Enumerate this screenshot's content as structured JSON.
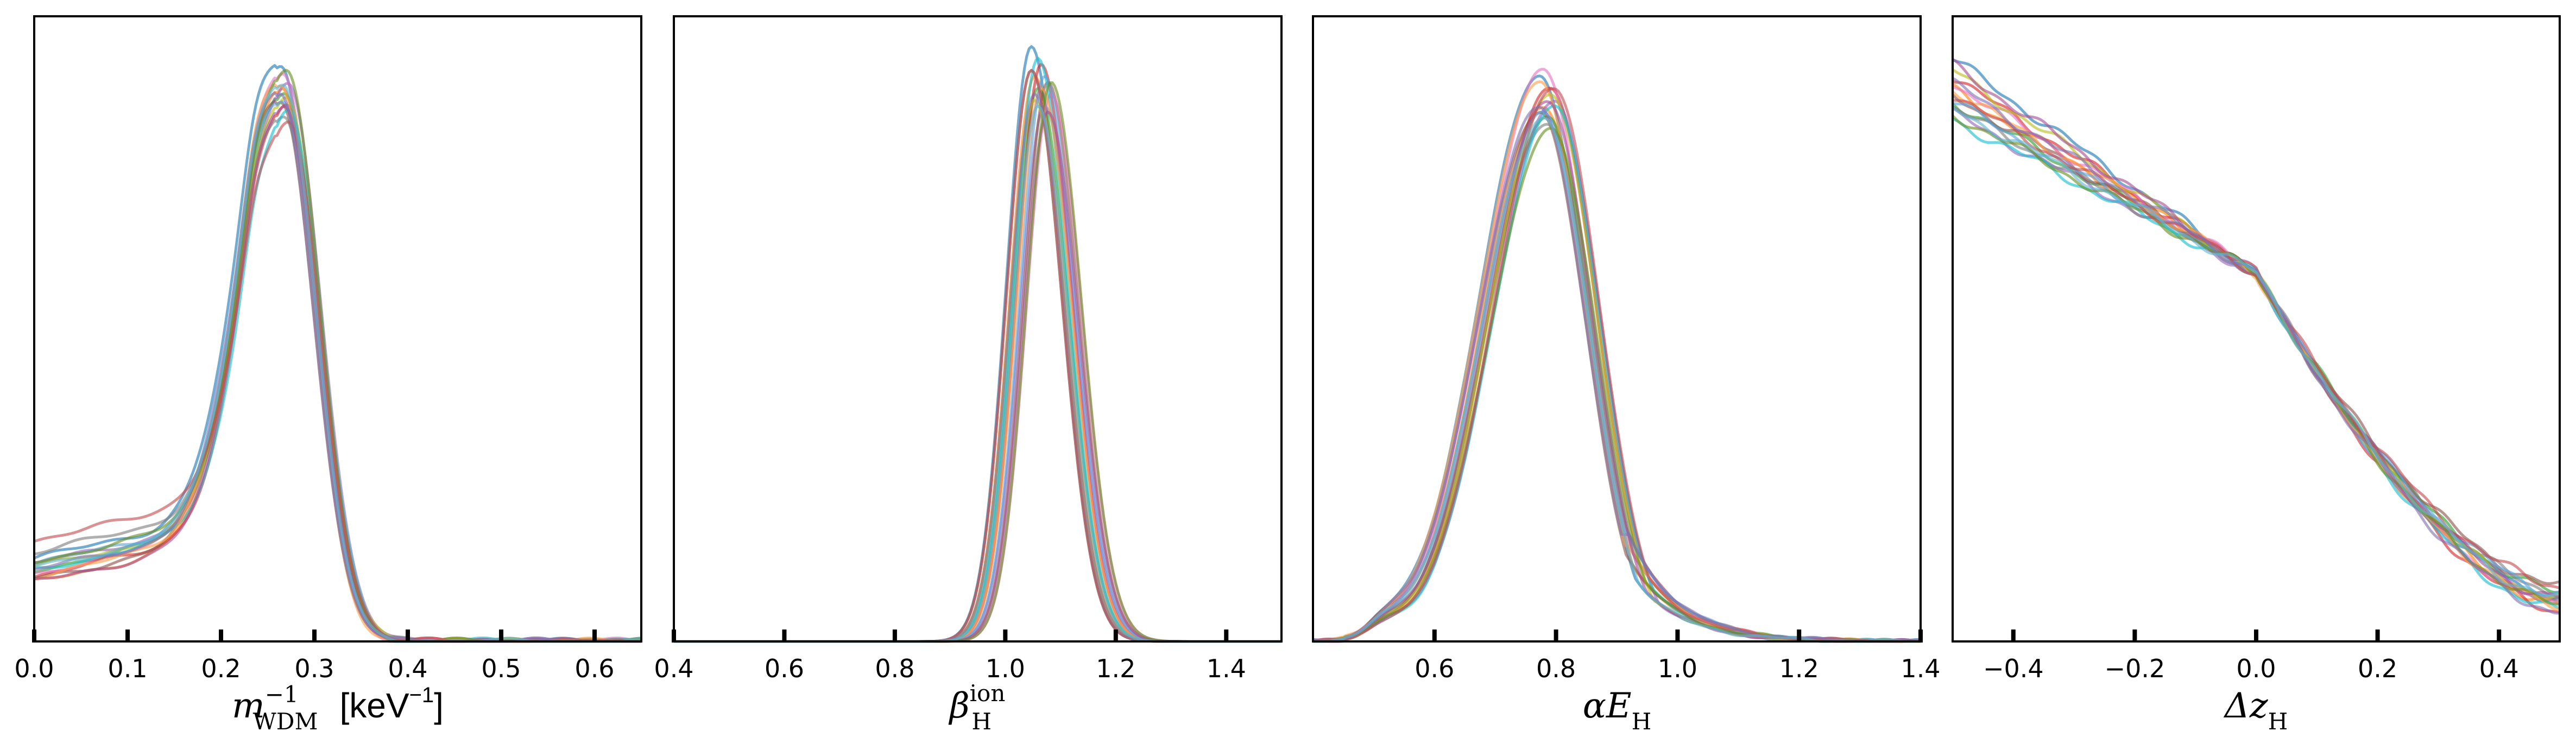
{
  "chart_data": [
    {
      "type": "line",
      "xlim": [
        0.0,
        0.65
      ],
      "xticks": [
        "0.0",
        "0.1",
        "0.2",
        "0.3",
        "0.4",
        "0.5",
        "0.6"
      ],
      "xlabel": {
        "main": "m",
        "sup": "−1",
        "sub": "WDM",
        "unit": "[keV",
        "unit_sup": "−1",
        "unit_end": "]"
      },
      "peak_x": 0.268,
      "series_peaks": [
        0.97,
        0.93,
        0.92,
        0.9,
        0.94,
        0.91,
        0.95,
        0.88,
        0.92,
        0.89,
        0.93,
        0.91,
        0.9,
        0.96,
        0.87,
        0.92,
        0.94
      ],
      "left_floor": [
        0.14,
        0.1,
        0.12,
        0.11,
        0.13,
        0.105,
        0.115,
        0.15,
        0.125,
        0.12,
        0.11,
        0.13,
        0.1,
        0.135,
        0.17,
        0.12,
        0.125
      ]
    },
    {
      "type": "line",
      "xlim": [
        0.4,
        1.5
      ],
      "xticks": [
        "0.4",
        "0.6",
        "0.8",
        "1.0",
        "1.2",
        "1.4"
      ],
      "xlabel": {
        "main": "β",
        "sup": "ion",
        "sub": "H"
      },
      "peak_x": 1.065,
      "series_peaks": [
        1.0,
        0.95,
        0.93,
        0.97,
        0.9,
        0.94,
        0.92,
        0.96,
        0.91,
        0.98,
        0.93,
        0.95,
        0.89,
        0.94,
        0.96,
        0.92,
        0.9
      ]
    },
    {
      "type": "line",
      "xlim": [
        0.4,
        1.4
      ],
      "xticks": [
        "0.6",
        "0.8",
        "1.0",
        "1.2",
        "1.4"
      ],
      "xlabel": {
        "main": "αE",
        "sub": "H"
      },
      "peak_x": 0.785,
      "series_peaks": [
        0.95,
        0.9,
        0.88,
        0.93,
        0.91,
        0.89,
        0.96,
        0.87,
        0.92,
        0.9,
        0.94,
        0.89,
        0.91,
        0.86,
        0.93,
        0.9,
        0.88
      ]
    },
    {
      "type": "line",
      "xlim": [
        -0.5,
        0.5
      ],
      "xticks": [
        "−0.4",
        "−0.2",
        "0.0",
        "0.2",
        "0.4"
      ],
      "xlabel": {
        "main": "Δz",
        "sub": "H"
      },
      "start_y": [
        0.95,
        0.9,
        0.88,
        0.92,
        0.86,
        0.89,
        0.91,
        0.87,
        0.93,
        0.85,
        0.9,
        0.88,
        0.94,
        0.86,
        0.89,
        0.91,
        0.87
      ],
      "end_y": [
        0.07,
        0.06,
        0.08,
        0.05,
        0.07,
        0.09,
        0.06,
        0.08,
        0.07,
        0.05,
        0.06,
        0.08,
        0.07,
        0.06,
        0.09,
        0.05,
        0.07
      ]
    }
  ],
  "colors": [
    "#1f77b4",
    "#ff7f0e",
    "#2ca02c",
    "#d62728",
    "#9467bd",
    "#8c564b",
    "#e377c2",
    "#7f7f7f",
    "#bcbd22",
    "#17becf",
    "#ff9e4a",
    "#5fa2dd",
    "#a55194",
    "#6b8e23",
    "#c44e52",
    "#8172b2",
    "#64b5cd"
  ]
}
